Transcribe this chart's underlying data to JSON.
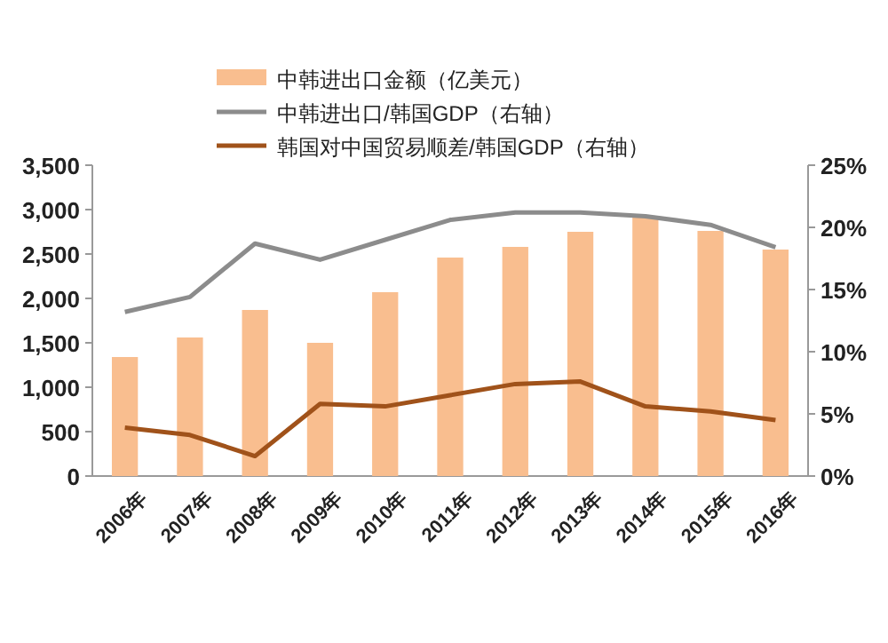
{
  "chart_data": {
    "type": "bar",
    "categories": [
      "2006年",
      "2007年",
      "2008年",
      "2009年",
      "2010年",
      "2011年",
      "2012年",
      "2013年",
      "2014年",
      "2015年",
      "2016年"
    ],
    "series": [
      {
        "name": "中韩进出口金额（亿美元）",
        "color": "#f9be8f",
        "values": [
          1340,
          1560,
          1870,
          1500,
          2070,
          2460,
          2580,
          2750,
          2910,
          2760,
          2550
        ]
      },
      {
        "name": "中韩进出口/韩国GDP（右轴）",
        "type": "line",
        "axis": "y2",
        "color": "#8c8c8c",
        "values": [
          13.2,
          14.4,
          18.7,
          17.4,
          19.0,
          20.6,
          21.2,
          21.2,
          20.9,
          20.2,
          18.4
        ]
      },
      {
        "name": "韩国对中国贸易顺差/韩国GDP（右轴）",
        "type": "line",
        "axis": "y2",
        "color": "#a0521a",
        "values": [
          3.9,
          3.3,
          1.6,
          5.8,
          5.6,
          6.5,
          7.4,
          7.6,
          5.6,
          5.2,
          4.5
        ]
      }
    ],
    "ylim": [
      0,
      3500
    ],
    "yticks": [
      0,
      500,
      {
        "value": 1000,
        "label": "1,000"
      },
      {
        "value": 1500,
        "label": "1,500"
      },
      {
        "value": 2000,
        "label": "2,000"
      },
      {
        "value": 2500,
        "label": "2,500"
      },
      {
        "value": 3000,
        "label": "3,000"
      },
      {
        "value": 3500,
        "label": "3,500"
      }
    ],
    "y2lim": [
      0,
      25
    ],
    "y2ticks": [
      {
        "value": 0,
        "label": "0%"
      },
      {
        "value": 5,
        "label": "5%"
      },
      {
        "value": 10,
        "label": "10%"
      },
      {
        "value": 15,
        "label": "15%"
      },
      {
        "value": 20,
        "label": "20%"
      },
      {
        "value": 25,
        "label": "25%"
      }
    ],
    "legend": "top",
    "grid": false
  }
}
